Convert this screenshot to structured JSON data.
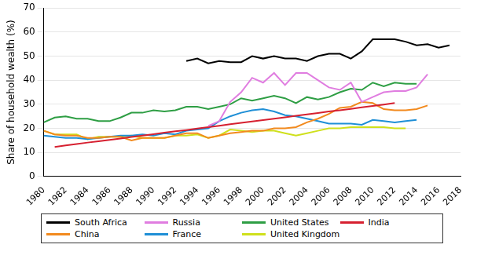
{
  "chart_data": {
    "type": "line",
    "y_label": "Share of household wealth (%)",
    "x": [
      1980,
      1981,
      1982,
      1983,
      1984,
      1985,
      1986,
      1987,
      1988,
      1989,
      1990,
      1991,
      1992,
      1993,
      1994,
      1995,
      1996,
      1997,
      1998,
      1999,
      2000,
      2001,
      2002,
      2003,
      2004,
      2005,
      2006,
      2007,
      2008,
      2009,
      2010,
      2011,
      2012,
      2013,
      2014,
      2015,
      2016,
      2017,
      2018
    ],
    "xlim": [
      1980,
      2018
    ],
    "xticks": [
      1980,
      1982,
      1984,
      1986,
      1988,
      1990,
      1992,
      1994,
      1996,
      1998,
      2000,
      2002,
      2004,
      2006,
      2008,
      2010,
      2012,
      2014,
      2016,
      2018
    ],
    "ylim": [
      0,
      70
    ],
    "yticks": [
      0,
      10,
      20,
      30,
      40,
      50,
      60,
      70
    ],
    "grid": true,
    "legend": "bottom",
    "series": [
      {
        "name": "South Africa",
        "color": "#000000",
        "values": [
          null,
          null,
          null,
          null,
          null,
          null,
          null,
          null,
          null,
          null,
          null,
          null,
          null,
          48,
          49,
          47,
          48,
          47.5,
          47.5,
          50,
          49,
          50,
          49,
          49,
          48,
          50,
          51,
          51,
          49,
          52,
          57,
          57,
          57,
          56,
          54.5,
          55,
          53.5,
          54.5,
          null
        ]
      },
      {
        "name": "Russia",
        "color": "#e07de0",
        "values": [
          null,
          null,
          null,
          null,
          null,
          null,
          null,
          null,
          null,
          null,
          null,
          null,
          null,
          null,
          null,
          21,
          23,
          31,
          35,
          41,
          39,
          43,
          38,
          43,
          43,
          40,
          37,
          36,
          39,
          31,
          33,
          35,
          35.5,
          35.5,
          37,
          42.5,
          null,
          null,
          null
        ]
      },
      {
        "name": "United States",
        "color": "#2e9e44",
        "values": [
          22.5,
          24.5,
          25,
          24,
          24,
          23,
          23,
          24.5,
          26.5,
          26.5,
          27.5,
          27,
          27.5,
          29,
          29,
          28,
          29,
          30,
          32.5,
          31.5,
          32.5,
          33.5,
          32.5,
          30.5,
          33,
          32,
          33,
          35,
          36.5,
          36,
          39,
          37.5,
          39,
          38.5,
          38.5,
          null,
          null,
          null,
          null
        ]
      },
      {
        "name": "India",
        "color": "#d62030",
        "values": [
          null,
          12.3,
          12.9,
          13.5,
          14.1,
          14.6,
          15.2,
          15.8,
          16.4,
          17,
          17.6,
          18.2,
          18.8,
          19.3,
          19.9,
          20.5,
          21.1,
          21.7,
          22.3,
          22.9,
          23.4,
          24,
          24.6,
          25.2,
          25.8,
          26.4,
          27,
          27.5,
          28.1,
          28.7,
          29.3,
          29.9,
          30.5,
          null,
          null,
          null,
          null,
          null,
          null
        ]
      },
      {
        "name": "China",
        "color": "#f28a1e",
        "values": [
          19,
          17.5,
          17,
          17,
          16,
          16,
          16.5,
          16.5,
          15,
          16,
          16,
          16,
          17,
          18,
          18,
          16,
          17,
          18,
          18.5,
          19,
          19,
          20,
          20,
          20.5,
          22.5,
          24,
          26,
          28.5,
          29,
          31,
          30.5,
          28,
          27.5,
          27.5,
          28,
          29.5,
          null,
          null,
          null
        ]
      },
      {
        "name": "France",
        "color": "#1f8fd6",
        "values": [
          17,
          16.5,
          16,
          16,
          15.5,
          16,
          16.5,
          17,
          17,
          17.5,
          17,
          18,
          17.5,
          19,
          19.5,
          20,
          23,
          25,
          26.5,
          27.5,
          28,
          27,
          25.5,
          25,
          24,
          23,
          22,
          22,
          22,
          21.5,
          23.5,
          23,
          22.5,
          23,
          23.5,
          null,
          null,
          null,
          null
        ]
      },
      {
        "name": "United Kingdom",
        "color": "#cfe01c",
        "values": [
          19,
          17.5,
          17.5,
          17.5,
          15.5,
          16.5,
          16.5,
          16.5,
          17,
          16,
          16,
          16,
          17,
          17,
          17.5,
          16,
          17,
          19.5,
          19,
          18.5,
          19,
          19,
          18,
          17,
          18,
          19,
          20,
          20,
          20.5,
          20.5,
          20.5,
          20.5,
          20,
          20,
          null,
          null,
          null,
          null,
          null
        ]
      }
    ]
  }
}
